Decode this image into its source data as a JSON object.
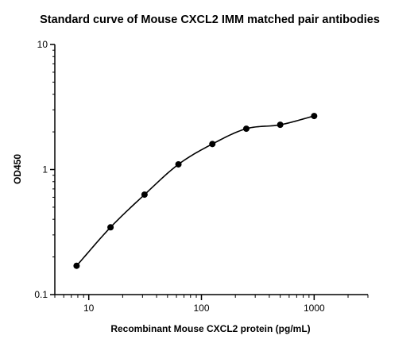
{
  "chart_data": {
    "type": "scatter",
    "title": "Standard curve of Mouse CXCL2 IMM matched pair antibodies",
    "xlabel": "Recombinant Mouse CXCL2 protein (pg/mL)",
    "ylabel": "OD450",
    "xscale": "log",
    "yscale": "log",
    "xlim": [
      5,
      3000
    ],
    "ylim": [
      0.1,
      10
    ],
    "x_ticks": [
      {
        "value": 10,
        "label": "10"
      },
      {
        "value": 100,
        "label": "100"
      },
      {
        "value": 1000,
        "label": "1000"
      }
    ],
    "y_ticks": [
      {
        "value": 0.1,
        "label": "0.1"
      },
      {
        "value": 1,
        "label": "1"
      },
      {
        "value": 10,
        "label": "10"
      }
    ],
    "grid": false,
    "legend": "none",
    "series": [
      {
        "x": [
          7.8,
          15.6,
          31.25,
          62.5,
          125,
          250,
          500,
          1000
        ],
        "y": [
          0.17,
          0.345,
          0.63,
          1.1,
          1.6,
          2.12,
          2.28,
          2.68
        ],
        "marker": "circle",
        "fit_line": "four-parameter logistic curve",
        "color": "#000000"
      }
    ]
  }
}
